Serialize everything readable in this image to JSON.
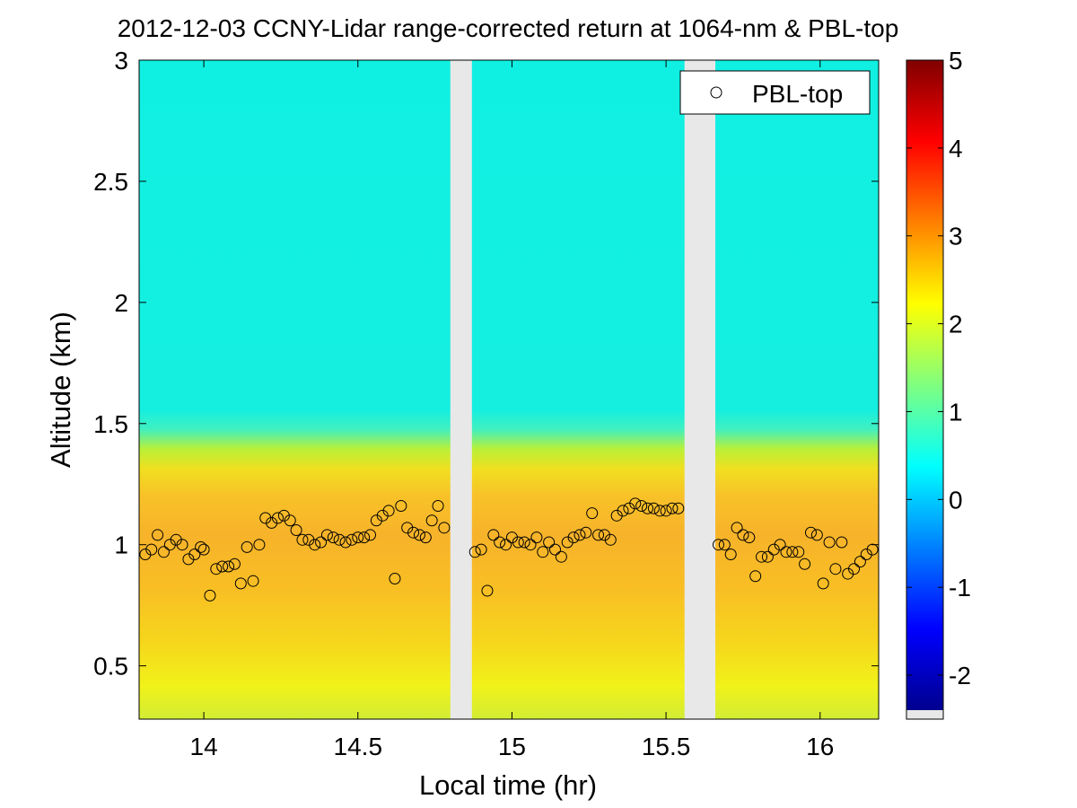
{
  "chart_data": {
    "type": "heatmap",
    "title": "2012-12-03 CCNY-Lidar range-corrected return at 1064-nm & PBL-top",
    "xlabel": "Local time (hr)",
    "ylabel": "Altitude (km)",
    "xlim": [
      13.79,
      16.19
    ],
    "ylim": [
      0.28,
      3.0
    ],
    "xticks": [
      14,
      14.5,
      15,
      15.5,
      16
    ],
    "xtick_labels": [
      "14",
      "14.5",
      "15",
      "15.5",
      "16"
    ],
    "yticks": [
      0.5,
      1,
      1.5,
      2,
      2.5,
      3
    ],
    "ytick_labels": [
      "0.5",
      "1",
      "1.5",
      "2",
      "2.5",
      "3"
    ],
    "colorbar": {
      "range": [
        -2.5,
        5
      ],
      "ticks": [
        -2,
        -1,
        0,
        1,
        2,
        3,
        4,
        5
      ],
      "tick_labels": [
        "-2",
        "-1",
        "0",
        "1",
        "2",
        "3",
        "4",
        "5"
      ],
      "colormap": "jet"
    },
    "data_gaps": [
      [
        14.8,
        14.87
      ],
      [
        15.56,
        15.66
      ]
    ],
    "gap_color": "#e8e8e8",
    "series": [
      {
        "name": "PBL-top",
        "marker": "open-circle",
        "x": [
          13.81,
          13.83,
          13.85,
          13.87,
          13.89,
          13.91,
          13.93,
          13.95,
          13.97,
          13.99,
          14.0,
          14.02,
          14.04,
          14.06,
          14.08,
          14.1,
          14.12,
          14.14,
          14.16,
          14.18,
          14.2,
          14.22,
          14.24,
          14.26,
          14.28,
          14.3,
          14.32,
          14.34,
          14.36,
          14.38,
          14.4,
          14.42,
          14.44,
          14.46,
          14.48,
          14.5,
          14.52,
          14.54,
          14.56,
          14.58,
          14.6,
          14.62,
          14.64,
          14.66,
          14.68,
          14.7,
          14.72,
          14.74,
          14.76,
          14.78,
          14.88,
          14.9,
          14.92,
          14.94,
          14.96,
          14.98,
          15.0,
          15.02,
          15.04,
          15.06,
          15.08,
          15.1,
          15.12,
          15.14,
          15.16,
          15.18,
          15.2,
          15.22,
          15.24,
          15.26,
          15.28,
          15.3,
          15.32,
          15.34,
          15.36,
          15.38,
          15.4,
          15.42,
          15.44,
          15.46,
          15.48,
          15.5,
          15.52,
          15.54,
          15.67,
          15.69,
          15.71,
          15.73,
          15.75,
          15.77,
          15.79,
          15.81,
          15.83,
          15.85,
          15.87,
          15.89,
          15.91,
          15.93,
          15.95,
          15.97,
          15.99,
          16.01,
          16.03,
          16.05,
          16.07,
          16.09,
          16.11,
          16.13,
          16.15,
          16.17
        ],
        "y": [
          0.96,
          0.98,
          1.04,
          0.97,
          1.0,
          1.02,
          1.0,
          0.94,
          0.96,
          0.99,
          0.98,
          0.79,
          0.9,
          0.91,
          0.91,
          0.92,
          0.84,
          0.99,
          0.85,
          1.0,
          1.11,
          1.09,
          1.11,
          1.12,
          1.1,
          1.06,
          1.02,
          1.02,
          1.0,
          1.01,
          1.04,
          1.03,
          1.02,
          1.01,
          1.02,
          1.03,
          1.03,
          1.04,
          1.1,
          1.12,
          1.14,
          0.86,
          1.16,
          1.07,
          1.05,
          1.04,
          1.03,
          1.1,
          1.16,
          1.07,
          0.97,
          0.98,
          0.81,
          1.04,
          1.01,
          1.0,
          1.03,
          1.01,
          1.01,
          1.0,
          1.03,
          0.97,
          1.01,
          0.98,
          0.95,
          1.01,
          1.03,
          1.04,
          1.05,
          1.13,
          1.04,
          1.04,
          1.02,
          1.12,
          1.14,
          1.15,
          1.17,
          1.16,
          1.15,
          1.15,
          1.14,
          1.14,
          1.15,
          1.15,
          1.0,
          1.0,
          0.96,
          1.07,
          1.04,
          1.03,
          0.87,
          0.95,
          0.95,
          0.98,
          1.0,
          0.97,
          0.97,
          0.97,
          0.92,
          1.05,
          1.04,
          0.84,
          1.01,
          0.9,
          1.01,
          0.88,
          0.9,
          0.93,
          0.96,
          0.98
        ]
      }
    ],
    "legend": {
      "label": "PBL-top",
      "position": "top-right"
    }
  },
  "colors": {
    "gap": "#e8e8e8",
    "marker_edge": "#000000",
    "axis": "#000000"
  }
}
